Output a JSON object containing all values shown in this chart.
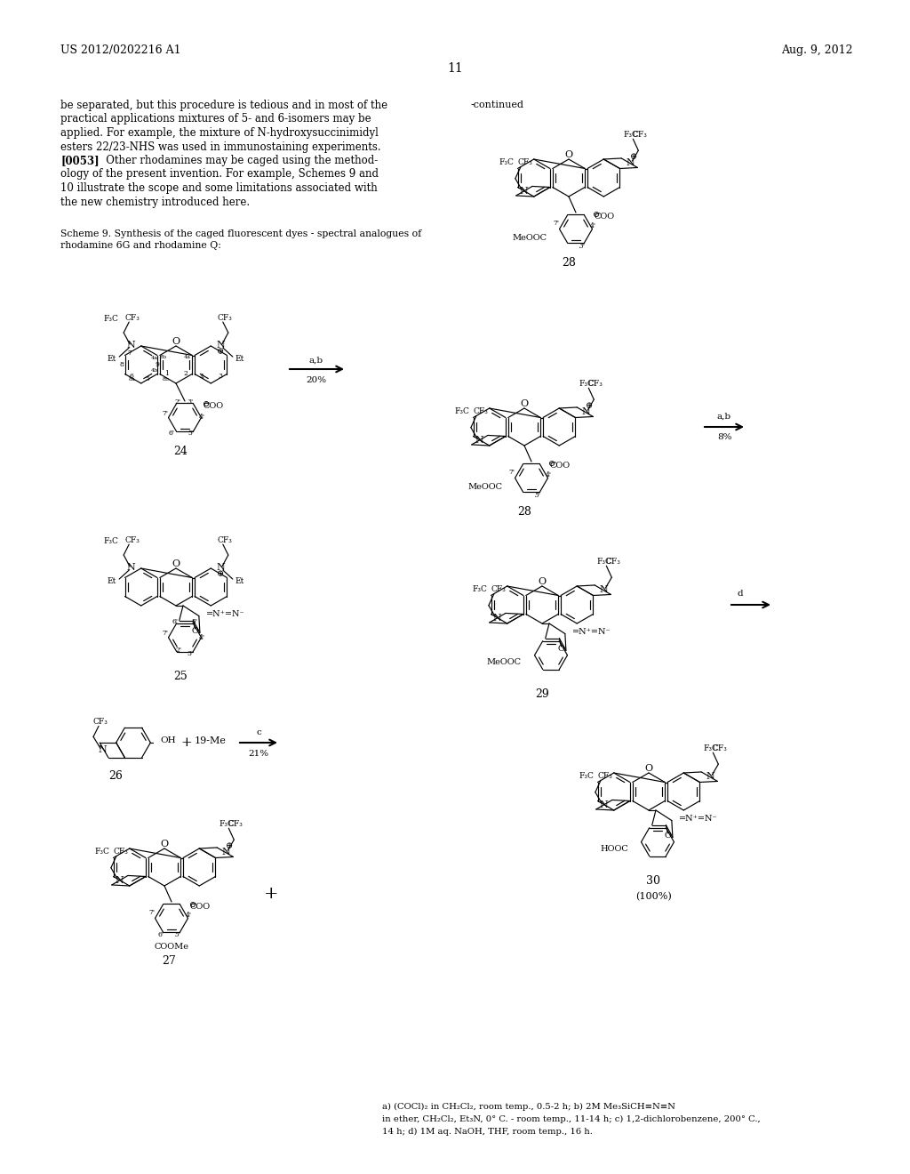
{
  "bg": "#ffffff",
  "tc": "#000000",
  "header_left": "US 2012/0202216 A1",
  "header_right": "Aug. 9, 2012",
  "page_num": "11",
  "body_lines": [
    "be separated, but this procedure is tedious and in most of the",
    "practical applications mixtures of 5- and 6-isomers may be",
    "applied. For example, the mixture of N-hydroxysuccinimidyl",
    "esters 22/23-NHS was used in immunostaining experiments.",
    "BOLD:[0053]   Other rhodamines may be caged using the method-",
    "ology of the present invention. For example, Schemes 9 and",
    "10 illustrate the scope and some limitations associated with",
    "the new chemistry introduced here."
  ],
  "scheme_caption1": "Scheme 9. Synthesis of the caged fluorescent dyes - spectral analogues of",
  "scheme_caption2": "rhodamine 6G and rhodamine Q:",
  "footnote1": "a) (COCl)₂ in CH₂Cl₂, room temp., 0.5-2 h; b) 2M Me₃SiCH≡N≡N",
  "footnote2": "in ether, CH₂Cl₂, Et₃N, 0° C. - room temp., 11-14 h; c) 1,2-dichlorobenzene, 200° C.,",
  "footnote3": "14 h; d) 1M aq. NaOH, THF, room temp., 16 h."
}
